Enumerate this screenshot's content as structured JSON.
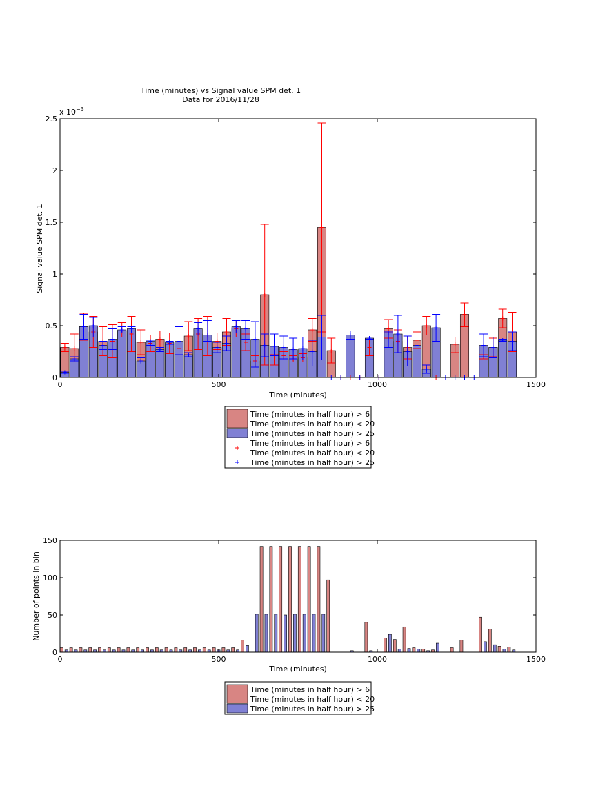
{
  "chart_data": [
    {
      "type": "bar",
      "title": "Time (minutes) vs Signal value SPM det. 1",
      "subtitle": "Data for 2016/11/28",
      "xlabel": "Time (minutes)",
      "ylabel": "Signal value SPM det. 1",
      "exponent": "x 10",
      "exponent_power": "−3",
      "xlim": [
        0,
        1500
      ],
      "ylim": [
        0,
        0.0025
      ],
      "xticks": [
        "0",
        "500",
        "1000",
        "1500"
      ],
      "yticks": [
        "0",
        "0.5",
        "1",
        "1.5",
        "2",
        "2.5"
      ],
      "legend_position": "bottom",
      "legend": [
        {
          "label_lines": [
            "Time (minutes in half hour) > 6",
            "Time (minutes in half hour) < 20"
          ],
          "marker": "patch",
          "color": "#d88583"
        },
        {
          "label_lines": [
            "Time (minutes in half hour) > 25"
          ],
          "marker": "patch",
          "color": "#8080d4"
        },
        {
          "label_lines": [
            "Time (minutes in half hour) > 6",
            "Time (minutes in half hour) < 20"
          ],
          "marker": "+",
          "color": "#ff0000"
        },
        {
          "label_lines": [
            "Time (minutes in half hour) > 25"
          ],
          "marker": "+",
          "color": "#0000ff"
        }
      ],
      "series": [
        {
          "color": "#d88583",
          "error_color": "#ff0000",
          "points": [
            [
              15,
              0.00029,
              0.00025,
              0.00033
            ],
            [
              45,
              0.00028,
              0.00015,
              0.00042
            ],
            [
              75,
              0.00049,
              0.00036,
              0.00062
            ],
            [
              105,
              0.00044,
              0.00029,
              0.00059
            ],
            [
              135,
              0.00035,
              0.00021,
              0.00049
            ],
            [
              165,
              0.00035,
              0.00019,
              0.00051
            ],
            [
              195,
              0.00045,
              0.00039,
              0.00053
            ],
            [
              225,
              0.00042,
              0.00025,
              0.00059
            ],
            [
              255,
              0.00034,
              0.00022,
              0.00046
            ],
            [
              285,
              0.00033,
              0.00025,
              0.00041
            ],
            [
              315,
              0.00037,
              0.00025,
              0.00045
            ],
            [
              345,
              0.00033,
              0.00023,
              0.00043
            ],
            [
              375,
              0.00028,
              0.00015,
              0.00041
            ],
            [
              405,
              0.0004,
              0.00026,
              0.00054
            ],
            [
              435,
              0.00042,
              0.00027,
              0.00057
            ],
            [
              465,
              0.00041,
              0.00021,
              0.00059
            ],
            [
              495,
              0.00035,
              0.00027,
              0.00043
            ],
            [
              525,
              0.00044,
              0.00031,
              0.00057
            ],
            [
              555,
              0.00047,
              0.00039,
              0.00055
            ],
            [
              585,
              0.00034,
              0.00026,
              0.00042
            ],
            [
              615,
              0.00016,
              0.00011,
              0.00021
            ],
            [
              645,
              0.0008,
              0.00012,
              0.00148
            ],
            [
              675,
              0.00017,
              0.00012,
              0.00022
            ],
            [
              705,
              0.00021,
              0.00017,
              0.00025
            ],
            [
              735,
              0.00018,
              0.00015,
              0.00021
            ],
            [
              765,
              0.00019,
              0.00015,
              0.00023
            ],
            [
              795,
              0.00046,
              0.00035,
              0.00057
            ],
            [
              825,
              0.00145,
              0.00044,
              0.00246
            ],
            [
              855,
              0.00026,
              0.00014,
              0.00038
            ],
            [
              885,
              0,
              0,
              0
            ],
            [
              915,
              0,
              0,
              0
            ],
            [
              945,
              0,
              0,
              0
            ],
            [
              975,
              0.00029,
              0.00021,
              0.00037
            ],
            [
              1005,
              0,
              0,
              0
            ],
            [
              1035,
              0.00047,
              0.00038,
              0.00056
            ],
            [
              1065,
              0.00035,
              0.00024,
              0.00046
            ],
            [
              1095,
              0.00029,
              0.00018,
              0.0004
            ],
            [
              1125,
              0.00036,
              0.00028,
              0.00044
            ],
            [
              1155,
              0.0005,
              0.00041,
              0.00059
            ],
            [
              1185,
              0,
              0,
              0
            ],
            [
              1245,
              0.00032,
              0.00024,
              0.00039
            ],
            [
              1275,
              0.00061,
              0.00049,
              0.00072
            ],
            [
              1335,
              0.0002,
              0.00018,
              0.00022
            ],
            [
              1365,
              0.00029,
              0.0002,
              0.00038
            ],
            [
              1395,
              0.00057,
              0.00048,
              0.00066
            ],
            [
              1425,
              0.00044,
              0.00025,
              0.00063
            ]
          ]
        },
        {
          "color": "#8080d4",
          "error_color": "#0000ff",
          "points": [
            [
              15,
              5e-05,
              4e-05,
              6e-05
            ],
            [
              45,
              0.00018,
              0.00016,
              0.0002
            ],
            [
              75,
              0.00049,
              0.00037,
              0.00061
            ],
            [
              105,
              0.0005,
              0.00039,
              0.00058
            ],
            [
              135,
              0.00031,
              0.00027,
              0.00035
            ],
            [
              165,
              0.00037,
              0.00027,
              0.00047
            ],
            [
              195,
              0.00046,
              0.00043,
              0.00049
            ],
            [
              225,
              0.00047,
              0.00043,
              0.00049
            ],
            [
              255,
              0.00016,
              0.00013,
              0.00019
            ],
            [
              285,
              0.00035,
              0.00031,
              0.00036
            ],
            [
              315,
              0.00027,
              0.00025,
              0.00029
            ],
            [
              345,
              0.00034,
              0.00032,
              0.00035
            ],
            [
              375,
              0.00035,
              0.00022,
              0.00049
            ],
            [
              405,
              0.00022,
              0.0002,
              0.00024
            ],
            [
              435,
              0.00047,
              0.00041,
              0.00053
            ],
            [
              465,
              0.00041,
              0.00035,
              0.00055
            ],
            [
              495,
              0.00029,
              0.00024,
              0.00034
            ],
            [
              525,
              0.00033,
              0.00026,
              0.0004
            ],
            [
              555,
              0.00049,
              0.00043,
              0.00055
            ],
            [
              585,
              0.00047,
              0.00037,
              0.00055
            ],
            [
              615,
              0.00037,
              0.0001,
              0.00054
            ],
            [
              645,
              0.00031,
              0.0002,
              0.00042
            ],
            [
              675,
              0.0003,
              0.00021,
              0.00042
            ],
            [
              705,
              0.00029,
              0.00018,
              0.0004
            ],
            [
              735,
              0.00027,
              0.00018,
              0.00038
            ],
            [
              765,
              0.00028,
              0.00017,
              0.00039
            ],
            [
              795,
              0.00025,
              0.00011,
              0.00036
            ],
            [
              825,
              0.00039,
              0.00017,
              0.0006
            ],
            [
              855,
              0,
              0,
              0
            ],
            [
              885,
              0,
              0,
              0
            ],
            [
              915,
              0.00041,
              0.00037,
              0.00045
            ],
            [
              945,
              0,
              0,
              0
            ],
            [
              975,
              0.00038,
              0.00037,
              0.00039
            ],
            [
              1005,
              0,
              0,
              0
            ],
            [
              1035,
              0.00043,
              0.00029,
              0.00044
            ],
            [
              1065,
              0.00042,
              0.00024,
              0.0006
            ],
            [
              1095,
              0.00025,
              0.00011,
              0.0004
            ],
            [
              1125,
              0.00031,
              0.00017,
              0.00045
            ],
            [
              1155,
              8e-05,
              4e-05,
              0.00012
            ],
            [
              1185,
              0.00048,
              0.00035,
              0.00061
            ],
            [
              1215,
              0,
              0,
              0
            ],
            [
              1245,
              0,
              0,
              0
            ],
            [
              1275,
              0,
              0,
              0
            ],
            [
              1305,
              0,
              0,
              0
            ],
            [
              1335,
              0.00031,
              0.0002,
              0.00042
            ],
            [
              1365,
              0.00029,
              0.00019,
              0.00039
            ],
            [
              1395,
              0.00036,
              0.00035,
              0.00037
            ],
            [
              1425,
              0.00035,
              0.00026,
              0.00044
            ]
          ]
        }
      ]
    },
    {
      "type": "bar",
      "xlabel": "Time (minutes)",
      "ylabel": "Number of points in bin",
      "xlim": [
        0,
        1500
      ],
      "ylim": [
        0,
        150
      ],
      "xticks": [
        "0",
        "500",
        "1000",
        "1500"
      ],
      "yticks": [
        "0",
        "50",
        "100",
        "150"
      ],
      "legend_position": "bottom",
      "legend": [
        {
          "label_lines": [
            "Time (minutes in half hour) > 6",
            "Time (minutes in half hour) < 20"
          ],
          "marker": "patch",
          "color": "#d88583"
        },
        {
          "label_lines": [
            "Time (minutes in half hour) > 25"
          ],
          "marker": "patch",
          "color": "#8080d4"
        }
      ],
      "series": [
        {
          "color": "#d88583",
          "points": [
            [
              5,
              6
            ],
            [
              35,
              6
            ],
            [
              65,
              6
            ],
            [
              95,
              6
            ],
            [
              125,
              6
            ],
            [
              155,
              6
            ],
            [
              185,
              6
            ],
            [
              215,
              6
            ],
            [
              245,
              6
            ],
            [
              275,
              6
            ],
            [
              305,
              6
            ],
            [
              335,
              6
            ],
            [
              365,
              6
            ],
            [
              395,
              6
            ],
            [
              425,
              6
            ],
            [
              455,
              6
            ],
            [
              485,
              6
            ],
            [
              515,
              6
            ],
            [
              545,
              6
            ],
            [
              575,
              16
            ],
            [
              635,
              142
            ],
            [
              665,
              142
            ],
            [
              695,
              142
            ],
            [
              725,
              142
            ],
            [
              755,
              142
            ],
            [
              785,
              142
            ],
            [
              815,
              142
            ],
            [
              845,
              97
            ],
            [
              965,
              40
            ],
            [
              1025,
              19
            ],
            [
              1055,
              17
            ],
            [
              1085,
              34
            ],
            [
              1115,
              6
            ],
            [
              1145,
              4
            ],
            [
              1175,
              3
            ],
            [
              1235,
              6
            ],
            [
              1265,
              16
            ],
            [
              1325,
              47
            ],
            [
              1355,
              31
            ],
            [
              1385,
              8
            ],
            [
              1415,
              7
            ]
          ]
        },
        {
          "color": "#8080d4",
          "points": [
            [
              20,
              3
            ],
            [
              50,
              3
            ],
            [
              80,
              3
            ],
            [
              110,
              3
            ],
            [
              140,
              3
            ],
            [
              170,
              3
            ],
            [
              200,
              3
            ],
            [
              230,
              3
            ],
            [
              260,
              3
            ],
            [
              290,
              3
            ],
            [
              320,
              3
            ],
            [
              350,
              3
            ],
            [
              380,
              3
            ],
            [
              410,
              3
            ],
            [
              440,
              3
            ],
            [
              470,
              3
            ],
            [
              500,
              3
            ],
            [
              530,
              3
            ],
            [
              560,
              3
            ],
            [
              590,
              9
            ],
            [
              620,
              51
            ],
            [
              650,
              51
            ],
            [
              680,
              51
            ],
            [
              710,
              50
            ],
            [
              740,
              51
            ],
            [
              770,
              51
            ],
            [
              800,
              51
            ],
            [
              830,
              51
            ],
            [
              920,
              2
            ],
            [
              980,
              2
            ],
            [
              1040,
              24
            ],
            [
              1070,
              4
            ],
            [
              1100,
              5
            ],
            [
              1130,
              4
            ],
            [
              1160,
              2
            ],
            [
              1190,
              12
            ],
            [
              1340,
              14
            ],
            [
              1370,
              10
            ],
            [
              1400,
              4
            ],
            [
              1430,
              3
            ]
          ]
        }
      ]
    }
  ]
}
